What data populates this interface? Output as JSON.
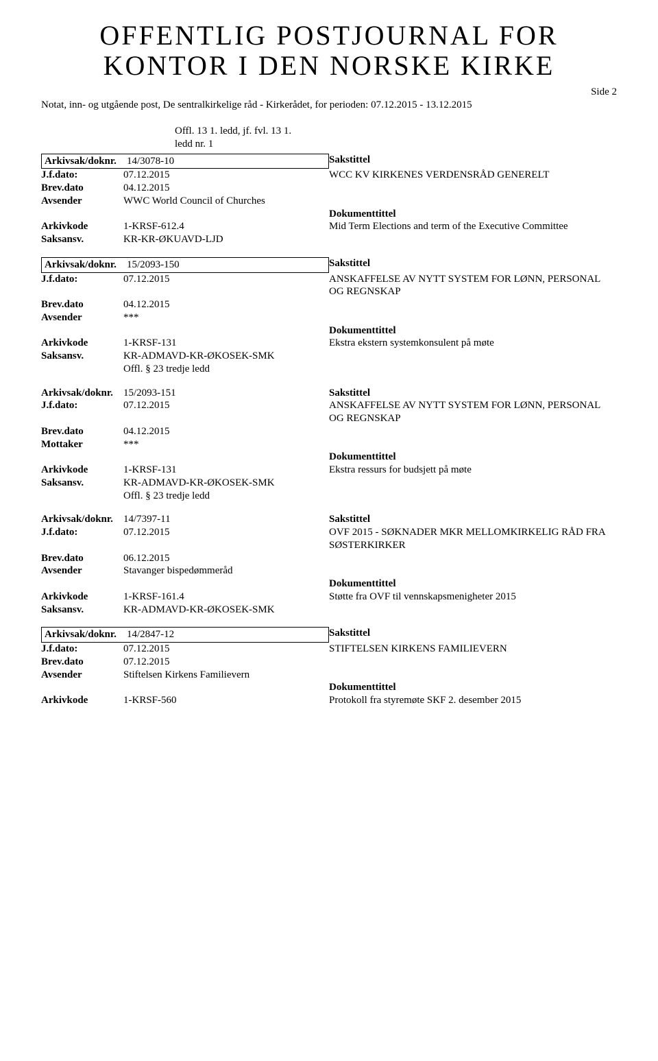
{
  "title_line1": "OFFENTLIG POSTJOURNAL FOR",
  "title_line2": "KONTOR I DEN NORSKE KIRKE",
  "page_side": "Side 2",
  "subtitle": "Notat, inn- og utgående post, De sentralkirkelige råd - Kirkerådet, for perioden: 07.12.2015 - 13.12.2015",
  "offl_header": "Offl. 13 1. ledd, jf. fvl. 13 1.\nledd nr. 1",
  "labels": {
    "arkivsak": "Arkivsak/doknr.",
    "jfdato": "J.f.dato:",
    "brevdato": "Brev.dato",
    "avsender": "Avsender",
    "mottaker": "Mottaker",
    "arkivkode": "Arkivkode",
    "saksansv": "Saksansv.",
    "sakstittel": "Sakstittel",
    "dokumenttittel": "Dokumenttittel"
  },
  "records": [
    {
      "boxed": true,
      "arkivsak": "14/3078-10",
      "jfdato": "07.12.2015",
      "sakstittel": "WCC KV KIRKENES VERDENSRÅD GENERELT",
      "brevdato": "04.12.2015",
      "party_label": "Avsender",
      "party": "WWC World Council of Churches",
      "arkivkode": "1-KRSF-612.4",
      "doktittel": "Mid Term Elections and term of the Executive Committee",
      "saksansv": "KR-KR-ØKUAVD-LJD",
      "offl": ""
    },
    {
      "boxed": true,
      "arkivsak": "15/2093-150",
      "jfdato": "07.12.2015",
      "sakstittel": "ANSKAFFELSE AV NYTT SYSTEM FOR LØNN, PERSONAL OG REGNSKAP",
      "brevdato": "04.12.2015",
      "party_label": "Avsender",
      "party": "***",
      "arkivkode": "1-KRSF-131",
      "doktittel": "Ekstra ekstern systemkonsulent på møte",
      "saksansv": "KR-ADMAVD-KR-ØKOSEK-SMK",
      "offl": "Offl. § 23 tredje ledd"
    },
    {
      "boxed": false,
      "arkivsak": "15/2093-151",
      "jfdato": "07.12.2015",
      "sakstittel": "ANSKAFFELSE AV NYTT SYSTEM FOR LØNN, PERSONAL OG REGNSKAP",
      "brevdato": "04.12.2015",
      "party_label": "Mottaker",
      "party": "***",
      "arkivkode": "1-KRSF-131",
      "doktittel": "Ekstra ressurs for budsjett på møte",
      "saksansv": "KR-ADMAVD-KR-ØKOSEK-SMK",
      "offl": "Offl. § 23 tredje ledd"
    },
    {
      "boxed": false,
      "arkivsak": "14/7397-11",
      "jfdato": "07.12.2015",
      "sakstittel": "OVF 2015 - SØKNADER MKR MELLOMKIRKELIG RÅD FRA SØSTERKIRKER",
      "brevdato": "06.12.2015",
      "party_label": "Avsender",
      "party": "Stavanger bispedømmeråd",
      "arkivkode": "1-KRSF-161.4",
      "doktittel": "Støtte fra OVF til vennskapsmenigheter 2015",
      "saksansv": "KR-ADMAVD-KR-ØKOSEK-SMK",
      "offl": ""
    },
    {
      "boxed": true,
      "arkivsak": "14/2847-12",
      "jfdato": "07.12.2015",
      "sakstittel": "STIFTELSEN KIRKENS FAMILIEVERN",
      "brevdato": "07.12.2015",
      "party_label": "Avsender",
      "party": "Stiftelsen Kirkens Familievern",
      "arkivkode": "1-KRSF-560",
      "doktittel": "Protokoll fra styremøte SKF  2. desember 2015",
      "saksansv": "",
      "offl": ""
    }
  ]
}
